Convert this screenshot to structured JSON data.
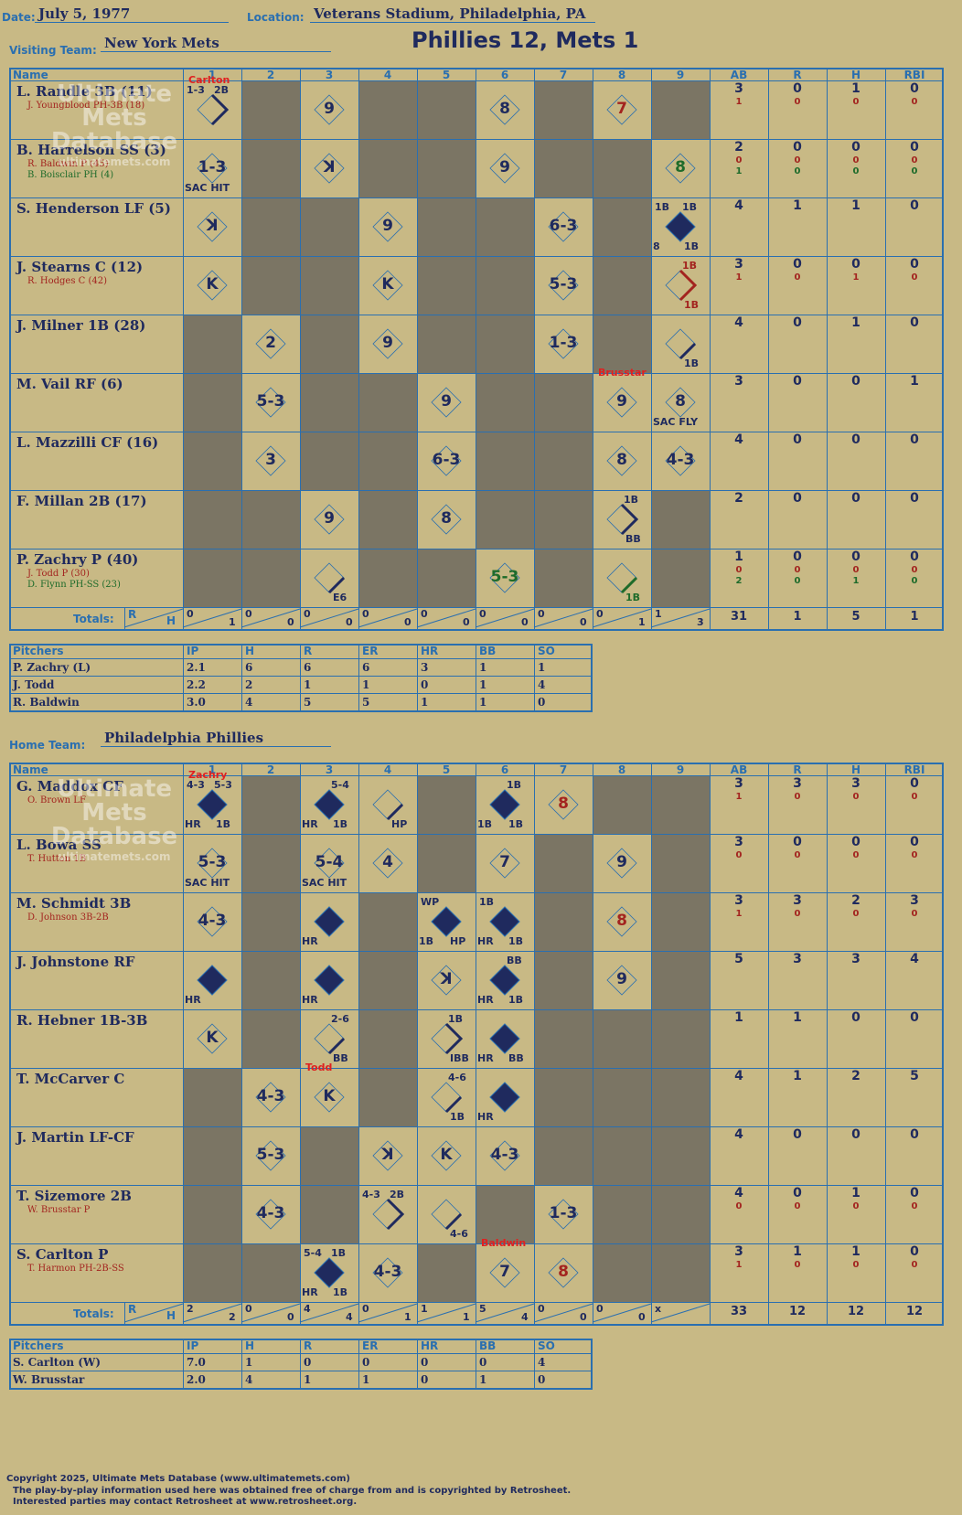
{
  "header": {
    "date_label": "Date:",
    "date": "July 5, 1977",
    "location_label": "Location:",
    "location": "Veterans Stadium, Philadelphia, PA",
    "visiting_label": "Visiting Team:",
    "visiting_team": "New York Mets",
    "headline": "Phillies 12, Mets 1",
    "home_label": "Home Team:",
    "home_team": "Philadelphia Phillies"
  },
  "columns": [
    "Name",
    "1",
    "2",
    "3",
    "4",
    "5",
    "6",
    "7",
    "8",
    "9",
    "AB",
    "R",
    "H",
    "RBI"
  ],
  "watermark": {
    "l1": "Ultimate",
    "l2": "Mets",
    "l3": "Database",
    "l4": "ultimatemets.com"
  },
  "visitors": {
    "rows": [
      {
        "name": "L. Randle 3B (11)",
        "subs": [
          {
            "t": "J. Youngblood PH-3B (18)",
            "c": "red"
          }
        ],
        "ab": "3",
        "r": "0",
        "h": "1",
        "rbi": "0",
        "sub_stats": [
          [
            "1",
            "0",
            "0",
            "0"
          ]
        ]
      },
      {
        "name": "B. Harrelson SS (3)",
        "subs": [
          {
            "t": "R. Baldwin P (45)",
            "c": "red"
          },
          {
            "t": "B. Boisclair PH (4)",
            "c": "green"
          }
        ],
        "ab": "2",
        "r": "0",
        "h": "0",
        "rbi": "0",
        "sub_stats": [
          [
            "0",
            "0",
            "0",
            "0"
          ],
          [
            "1",
            "0",
            "0",
            "0"
          ]
        ]
      },
      {
        "name": "S. Henderson LF (5)",
        "subs": [],
        "ab": "4",
        "r": "1",
        "h": "1",
        "rbi": "0",
        "sub_stats": []
      },
      {
        "name": "J. Stearns C (12)",
        "subs": [
          {
            "t": "R. Hodges C (42)",
            "c": "red"
          }
        ],
        "ab": "3",
        "r": "0",
        "h": "0",
        "rbi": "0",
        "sub_stats": [
          [
            "1",
            "0",
            "1",
            "0"
          ]
        ]
      },
      {
        "name": "J. Milner 1B (28)",
        "subs": [],
        "ab": "4",
        "r": "0",
        "h": "1",
        "rbi": "0",
        "sub_stats": []
      },
      {
        "name": "M. Vail RF (6)",
        "subs": [],
        "ab": "3",
        "r": "0",
        "h": "0",
        "rbi": "1",
        "sub_stats": []
      },
      {
        "name": "L. Mazzilli CF (16)",
        "subs": [],
        "ab": "4",
        "r": "0",
        "h": "0",
        "rbi": "0",
        "sub_stats": []
      },
      {
        "name": "F. Millan 2B (17)",
        "subs": [],
        "ab": "2",
        "r": "0",
        "h": "0",
        "rbi": "0",
        "sub_stats": []
      },
      {
        "name": "P. Zachry P (40)",
        "subs": [
          {
            "t": "J. Todd P (30)",
            "c": "red"
          },
          {
            "t": "D. Flynn PH-SS (23)",
            "c": "green"
          }
        ],
        "ab": "1",
        "r": "0",
        "h": "0",
        "rbi": "0",
        "sub_stats": [
          [
            "0",
            "0",
            "0",
            "0"
          ],
          [
            "2",
            "0",
            "1",
            "0"
          ]
        ]
      }
    ],
    "totals_label": "Totals:",
    "totals_rh": [
      "R",
      "H"
    ],
    "inning_totals": [
      [
        "0",
        "1"
      ],
      [
        "0",
        "0"
      ],
      [
        "0",
        "0"
      ],
      [
        "0",
        "0"
      ],
      [
        "0",
        "0"
      ],
      [
        "0",
        "0"
      ],
      [
        "0",
        "0"
      ],
      [
        "0",
        "1"
      ],
      [
        "1",
        "3"
      ]
    ],
    "totals": [
      "31",
      "1",
      "5",
      "1"
    ],
    "plays": [
      {
        "r": 0,
        "c": 1,
        "t": "",
        "tl": "1-3",
        "tr": "2B",
        "bl": "",
        "br": "",
        "note": "Carlton",
        "diam": "half"
      },
      {
        "r": 0,
        "c": 3,
        "t": "9"
      },
      {
        "r": 0,
        "c": 6,
        "t": "8"
      },
      {
        "r": 0,
        "c": 8,
        "t": "7",
        "cls": "red"
      },
      {
        "r": 1,
        "c": 1,
        "t": "1-3",
        "bl": "SAC HIT"
      },
      {
        "r": 1,
        "c": 3,
        "t": "ꓘ"
      },
      {
        "r": 1,
        "c": 6,
        "t": "9"
      },
      {
        "r": 1,
        "c": 9,
        "t": "8",
        "cls": "green"
      },
      {
        "r": 2,
        "c": 1,
        "t": "ꓘ"
      },
      {
        "r": 2,
        "c": 4,
        "t": "9"
      },
      {
        "r": 2,
        "c": 7,
        "t": "6-3"
      },
      {
        "r": 2,
        "c": 9,
        "t": "",
        "tl": "1B",
        "tr": "1B",
        "bl": "8",
        "br": "1B",
        "diam": "full"
      },
      {
        "r": 3,
        "c": 1,
        "t": "K"
      },
      {
        "r": 3,
        "c": 4,
        "t": "K"
      },
      {
        "r": 3,
        "c": 7,
        "t": "5-3"
      },
      {
        "r": 3,
        "c": 9,
        "t": "",
        "tr": "1B",
        "br": "1B",
        "trc": "red",
        "brc": "red",
        "diam": "halfred"
      },
      {
        "r": 4,
        "c": 2,
        "t": "2"
      },
      {
        "r": 4,
        "c": 4,
        "t": "9"
      },
      {
        "r": 4,
        "c": 7,
        "t": "1-3"
      },
      {
        "r": 4,
        "c": 9,
        "t": "",
        "br": "1B",
        "diam": "line"
      },
      {
        "r": 5,
        "c": 2,
        "t": "5-3"
      },
      {
        "r": 5,
        "c": 5,
        "t": "9"
      },
      {
        "r": 5,
        "c": 8,
        "t": "9",
        "note": "Brusstar"
      },
      {
        "r": 5,
        "c": 9,
        "t": "8",
        "bl": "SAC FLY"
      },
      {
        "r": 6,
        "c": 2,
        "t": "3"
      },
      {
        "r": 6,
        "c": 5,
        "t": "6-3"
      },
      {
        "r": 6,
        "c": 8,
        "t": "8"
      },
      {
        "r": 6,
        "c": 9,
        "t": "4-3"
      },
      {
        "r": 7,
        "c": 3,
        "t": "9"
      },
      {
        "r": 7,
        "c": 5,
        "t": "8"
      },
      {
        "r": 7,
        "c": 8,
        "t": "",
        "tr": "1B",
        "br": "BB",
        "diam": "half"
      },
      {
        "r": 8,
        "c": 3,
        "t": "",
        "br": "E6",
        "diam": "line"
      },
      {
        "r": 8,
        "c": 6,
        "t": "5-3",
        "cls": "green"
      },
      {
        "r": 8,
        "c": 8,
        "t": "",
        "br": "1B",
        "brc": "green",
        "diam": "linegreen"
      }
    ],
    "dark": [
      [
        0,
        2
      ],
      [
        0,
        4
      ],
      [
        0,
        5
      ],
      [
        0,
        7
      ],
      [
        0,
        9
      ],
      [
        1,
        2
      ],
      [
        1,
        4
      ],
      [
        1,
        5
      ],
      [
        1,
        7
      ],
      [
        1,
        8
      ],
      [
        2,
        2
      ],
      [
        2,
        3
      ],
      [
        2,
        5
      ],
      [
        2,
        6
      ],
      [
        2,
        8
      ],
      [
        3,
        2
      ],
      [
        3,
        3
      ],
      [
        3,
        5
      ],
      [
        3,
        6
      ],
      [
        3,
        8
      ],
      [
        4,
        1
      ],
      [
        4,
        3
      ],
      [
        4,
        5
      ],
      [
        4,
        6
      ],
      [
        4,
        8
      ],
      [
        5,
        1
      ],
      [
        5,
        3
      ],
      [
        5,
        4
      ],
      [
        5,
        6
      ],
      [
        5,
        7
      ],
      [
        6,
        1
      ],
      [
        6,
        3
      ],
      [
        6,
        4
      ],
      [
        6,
        6
      ],
      [
        6,
        7
      ],
      [
        7,
        1
      ],
      [
        7,
        2
      ],
      [
        7,
        4
      ],
      [
        7,
        6
      ],
      [
        7,
        7
      ],
      [
        7,
        9
      ],
      [
        8,
        1
      ],
      [
        8,
        2
      ],
      [
        8,
        4
      ],
      [
        8,
        5
      ],
      [
        8,
        7
      ],
      [
        8,
        9
      ]
    ]
  },
  "visitor_pitchers": {
    "headers": [
      "Pitchers",
      "IP",
      "H",
      "R",
      "ER",
      "HR",
      "BB",
      "SO"
    ],
    "rows": [
      [
        "P. Zachry (L)",
        "2.1",
        "6",
        "6",
        "6",
        "3",
        "1",
        "1"
      ],
      [
        "J. Todd",
        "2.2",
        "2",
        "1",
        "1",
        "0",
        "1",
        "4"
      ],
      [
        "R. Baldwin",
        "3.0",
        "4",
        "5",
        "5",
        "1",
        "1",
        "0"
      ]
    ]
  },
  "home": {
    "rows": [
      {
        "name": "G. Maddox CF",
        "subs": [
          {
            "t": "O. Brown LF",
            "c": "red"
          }
        ],
        "ab": "3",
        "r": "3",
        "h": "3",
        "rbi": "0",
        "sub_stats": [
          [
            "1",
            "0",
            "0",
            "0"
          ]
        ]
      },
      {
        "name": "L. Bowa SS",
        "subs": [
          {
            "t": "T. Hutton 1B",
            "c": "red"
          }
        ],
        "ab": "3",
        "r": "0",
        "h": "0",
        "rbi": "0",
        "sub_stats": [
          [
            "0",
            "0",
            "0",
            "0"
          ]
        ]
      },
      {
        "name": "M. Schmidt 3B",
        "subs": [
          {
            "t": "D. Johnson 3B-2B",
            "c": "red"
          }
        ],
        "ab": "3",
        "r": "3",
        "h": "2",
        "rbi": "3",
        "sub_stats": [
          [
            "1",
            "0",
            "0",
            "0"
          ]
        ]
      },
      {
        "name": "J. Johnstone RF",
        "subs": [],
        "ab": "5",
        "r": "3",
        "h": "3",
        "rbi": "4",
        "sub_stats": []
      },
      {
        "name": "R. Hebner 1B-3B",
        "subs": [],
        "ab": "1",
        "r": "1",
        "h": "0",
        "rbi": "0",
        "sub_stats": []
      },
      {
        "name": "T. McCarver C",
        "subs": [],
        "ab": "4",
        "r": "1",
        "h": "2",
        "rbi": "5",
        "sub_stats": []
      },
      {
        "name": "J. Martin LF-CF",
        "subs": [],
        "ab": "4",
        "r": "0",
        "h": "0",
        "rbi": "0",
        "sub_stats": []
      },
      {
        "name": "T. Sizemore 2B",
        "subs": [
          {
            "t": "W. Brusstar P",
            "c": "red"
          }
        ],
        "ab": "4",
        "r": "0",
        "h": "1",
        "rbi": "0",
        "sub_stats": [
          [
            "0",
            "0",
            "0",
            "0"
          ]
        ]
      },
      {
        "name": "S. Carlton P",
        "subs": [
          {
            "t": "T. Harmon PH-2B-SS",
            "c": "red"
          }
        ],
        "ab": "3",
        "r": "1",
        "h": "1",
        "rbi": "0",
        "sub_stats": [
          [
            "1",
            "0",
            "0",
            "0"
          ]
        ]
      }
    ],
    "totals_label": "Totals:",
    "totals_rh": [
      "R",
      "H"
    ],
    "inning_totals": [
      [
        "2",
        "2"
      ],
      [
        "0",
        "0"
      ],
      [
        "4",
        "4"
      ],
      [
        "0",
        "1"
      ],
      [
        "1",
        "1"
      ],
      [
        "5",
        "4"
      ],
      [
        "0",
        "0"
      ],
      [
        "0",
        "0"
      ],
      [
        "x",
        ""
      ]
    ],
    "totals": [
      "33",
      "12",
      "12",
      "12"
    ],
    "plays": [
      {
        "r": 0,
        "c": 1,
        "t": "",
        "tl": "4-3",
        "tr": "5-3",
        "bl": "HR",
        "br": "1B",
        "note": "Zachry",
        "diam": "full"
      },
      {
        "r": 0,
        "c": 3,
        "t": "",
        "tr": "5-4",
        "bl": "HR",
        "br": "1B",
        "diam": "full"
      },
      {
        "r": 0,
        "c": 4,
        "t": "",
        "br": "HP",
        "diam": "line"
      },
      {
        "r": 0,
        "c": 6,
        "t": "",
        "tr": "1B",
        "bl": "1B",
        "br": "1B",
        "diam": "full"
      },
      {
        "r": 0,
        "c": 7,
        "t": "8",
        "cls": "red"
      },
      {
        "r": 1,
        "c": 1,
        "t": "5-3",
        "bl": "SAC HIT"
      },
      {
        "r": 1,
        "c": 3,
        "t": "5-4",
        "bl": "SAC HIT"
      },
      {
        "r": 1,
        "c": 4,
        "t": "4"
      },
      {
        "r": 1,
        "c": 6,
        "t": "7"
      },
      {
        "r": 1,
        "c": 8,
        "t": "9"
      },
      {
        "r": 2,
        "c": 1,
        "t": "4-3"
      },
      {
        "r": 2,
        "c": 3,
        "t": "",
        "bl": "HR",
        "diam": "full"
      },
      {
        "r": 2,
        "c": 5,
        "t": "",
        "tl": "WP",
        "bl": "1B",
        "br": "HP",
        "diam": "full"
      },
      {
        "r": 2,
        "c": 6,
        "t": "",
        "tl": "1B",
        "bl": "HR",
        "br": "1B",
        "diam": "full"
      },
      {
        "r": 2,
        "c": 8,
        "t": "8",
        "cls": "red"
      },
      {
        "r": 3,
        "c": 1,
        "t": "",
        "bl": "HR",
        "diam": "full"
      },
      {
        "r": 3,
        "c": 3,
        "t": "",
        "bl": "HR",
        "diam": "full"
      },
      {
        "r": 3,
        "c": 5,
        "t": "ꓘ"
      },
      {
        "r": 3,
        "c": 6,
        "t": "",
        "tr": "BB",
        "bl": "HR",
        "br": "1B",
        "diam": "full"
      },
      {
        "r": 3,
        "c": 8,
        "t": "9"
      },
      {
        "r": 4,
        "c": 1,
        "t": "K"
      },
      {
        "r": 4,
        "c": 3,
        "t": "",
        "tr": "2-6",
        "br": "BB",
        "diam": "line"
      },
      {
        "r": 4,
        "c": 5,
        "t": "",
        "tr": "1B",
        "br": "IBB",
        "diam": "half"
      },
      {
        "r": 4,
        "c": 6,
        "t": "",
        "bl": "HR",
        "br": "BB",
        "diam": "full"
      },
      {
        "r": 5,
        "c": 2,
        "t": "4-3"
      },
      {
        "r": 5,
        "c": 3,
        "t": "K",
        "note": "Todd"
      },
      {
        "r": 5,
        "c": 5,
        "t": "",
        "tr": "4-6",
        "br": "1B",
        "diam": "line"
      },
      {
        "r": 5,
        "c": 6,
        "t": "",
        "bl": "HR",
        "diam": "full"
      },
      {
        "r": 6,
        "c": 2,
        "t": "5-3"
      },
      {
        "r": 6,
        "c": 4,
        "t": "ꓘ"
      },
      {
        "r": 6,
        "c": 5,
        "t": "K"
      },
      {
        "r": 6,
        "c": 6,
        "t": "4-3"
      },
      {
        "r": 7,
        "c": 2,
        "t": "4-3"
      },
      {
        "r": 7,
        "c": 4,
        "t": "",
        "tl": "4-3",
        "tr": "2B",
        "diam": "half"
      },
      {
        "r": 7,
        "c": 5,
        "t": "",
        "br": "4-6",
        "diam": "line"
      },
      {
        "r": 7,
        "c": 7,
        "t": "1-3"
      },
      {
        "r": 8,
        "c": 3,
        "t": "",
        "tl": "5-4",
        "tr": "1B",
        "bl": "HR",
        "br": "1B",
        "diam": "full"
      },
      {
        "r": 8,
        "c": 4,
        "t": "4-3"
      },
      {
        "r": 8,
        "c": 6,
        "t": "7",
        "note": "Baldwin"
      },
      {
        "r": 8,
        "c": 7,
        "t": "8",
        "cls": "red"
      }
    ],
    "dark": [
      [
        0,
        2
      ],
      [
        0,
        5
      ],
      [
        0,
        8
      ],
      [
        0,
        9
      ],
      [
        1,
        2
      ],
      [
        1,
        5
      ],
      [
        1,
        7
      ],
      [
        1,
        9
      ],
      [
        2,
        2
      ],
      [
        2,
        4
      ],
      [
        2,
        7
      ],
      [
        2,
        9
      ],
      [
        3,
        2
      ],
      [
        3,
        4
      ],
      [
        3,
        7
      ],
      [
        3,
        9
      ],
      [
        4,
        2
      ],
      [
        4,
        4
      ],
      [
        4,
        7
      ],
      [
        4,
        8
      ],
      [
        4,
        9
      ],
      [
        5,
        1
      ],
      [
        5,
        4
      ],
      [
        5,
        7
      ],
      [
        5,
        8
      ],
      [
        5,
        9
      ],
      [
        6,
        1
      ],
      [
        6,
        3
      ],
      [
        6,
        7
      ],
      [
        6,
        8
      ],
      [
        6,
        9
      ],
      [
        7,
        1
      ],
      [
        7,
        3
      ],
      [
        7,
        6
      ],
      [
        7,
        8
      ],
      [
        7,
        9
      ],
      [
        8,
        1
      ],
      [
        8,
        2
      ],
      [
        8,
        5
      ],
      [
        8,
        8
      ],
      [
        8,
        9
      ]
    ]
  },
  "home_pitchers": {
    "headers": [
      "Pitchers",
      "IP",
      "H",
      "R",
      "ER",
      "HR",
      "BB",
      "SO"
    ],
    "rows": [
      [
        "S. Carlton (W)",
        "7.0",
        "1",
        "0",
        "0",
        "0",
        "0",
        "4"
      ],
      [
        "W. Brusstar",
        "2.0",
        "4",
        "1",
        "1",
        "0",
        "1",
        "0"
      ]
    ]
  },
  "footer": {
    "line1": "Copyright 2025, Ultimate Mets Database (www.ultimatemets.com)",
    "line2": "The play-by-play information used here was obtained free of charge from and is copyrighted by Retrosheet.",
    "line3": "Interested parties may contact Retrosheet at www.retrosheet.org."
  }
}
